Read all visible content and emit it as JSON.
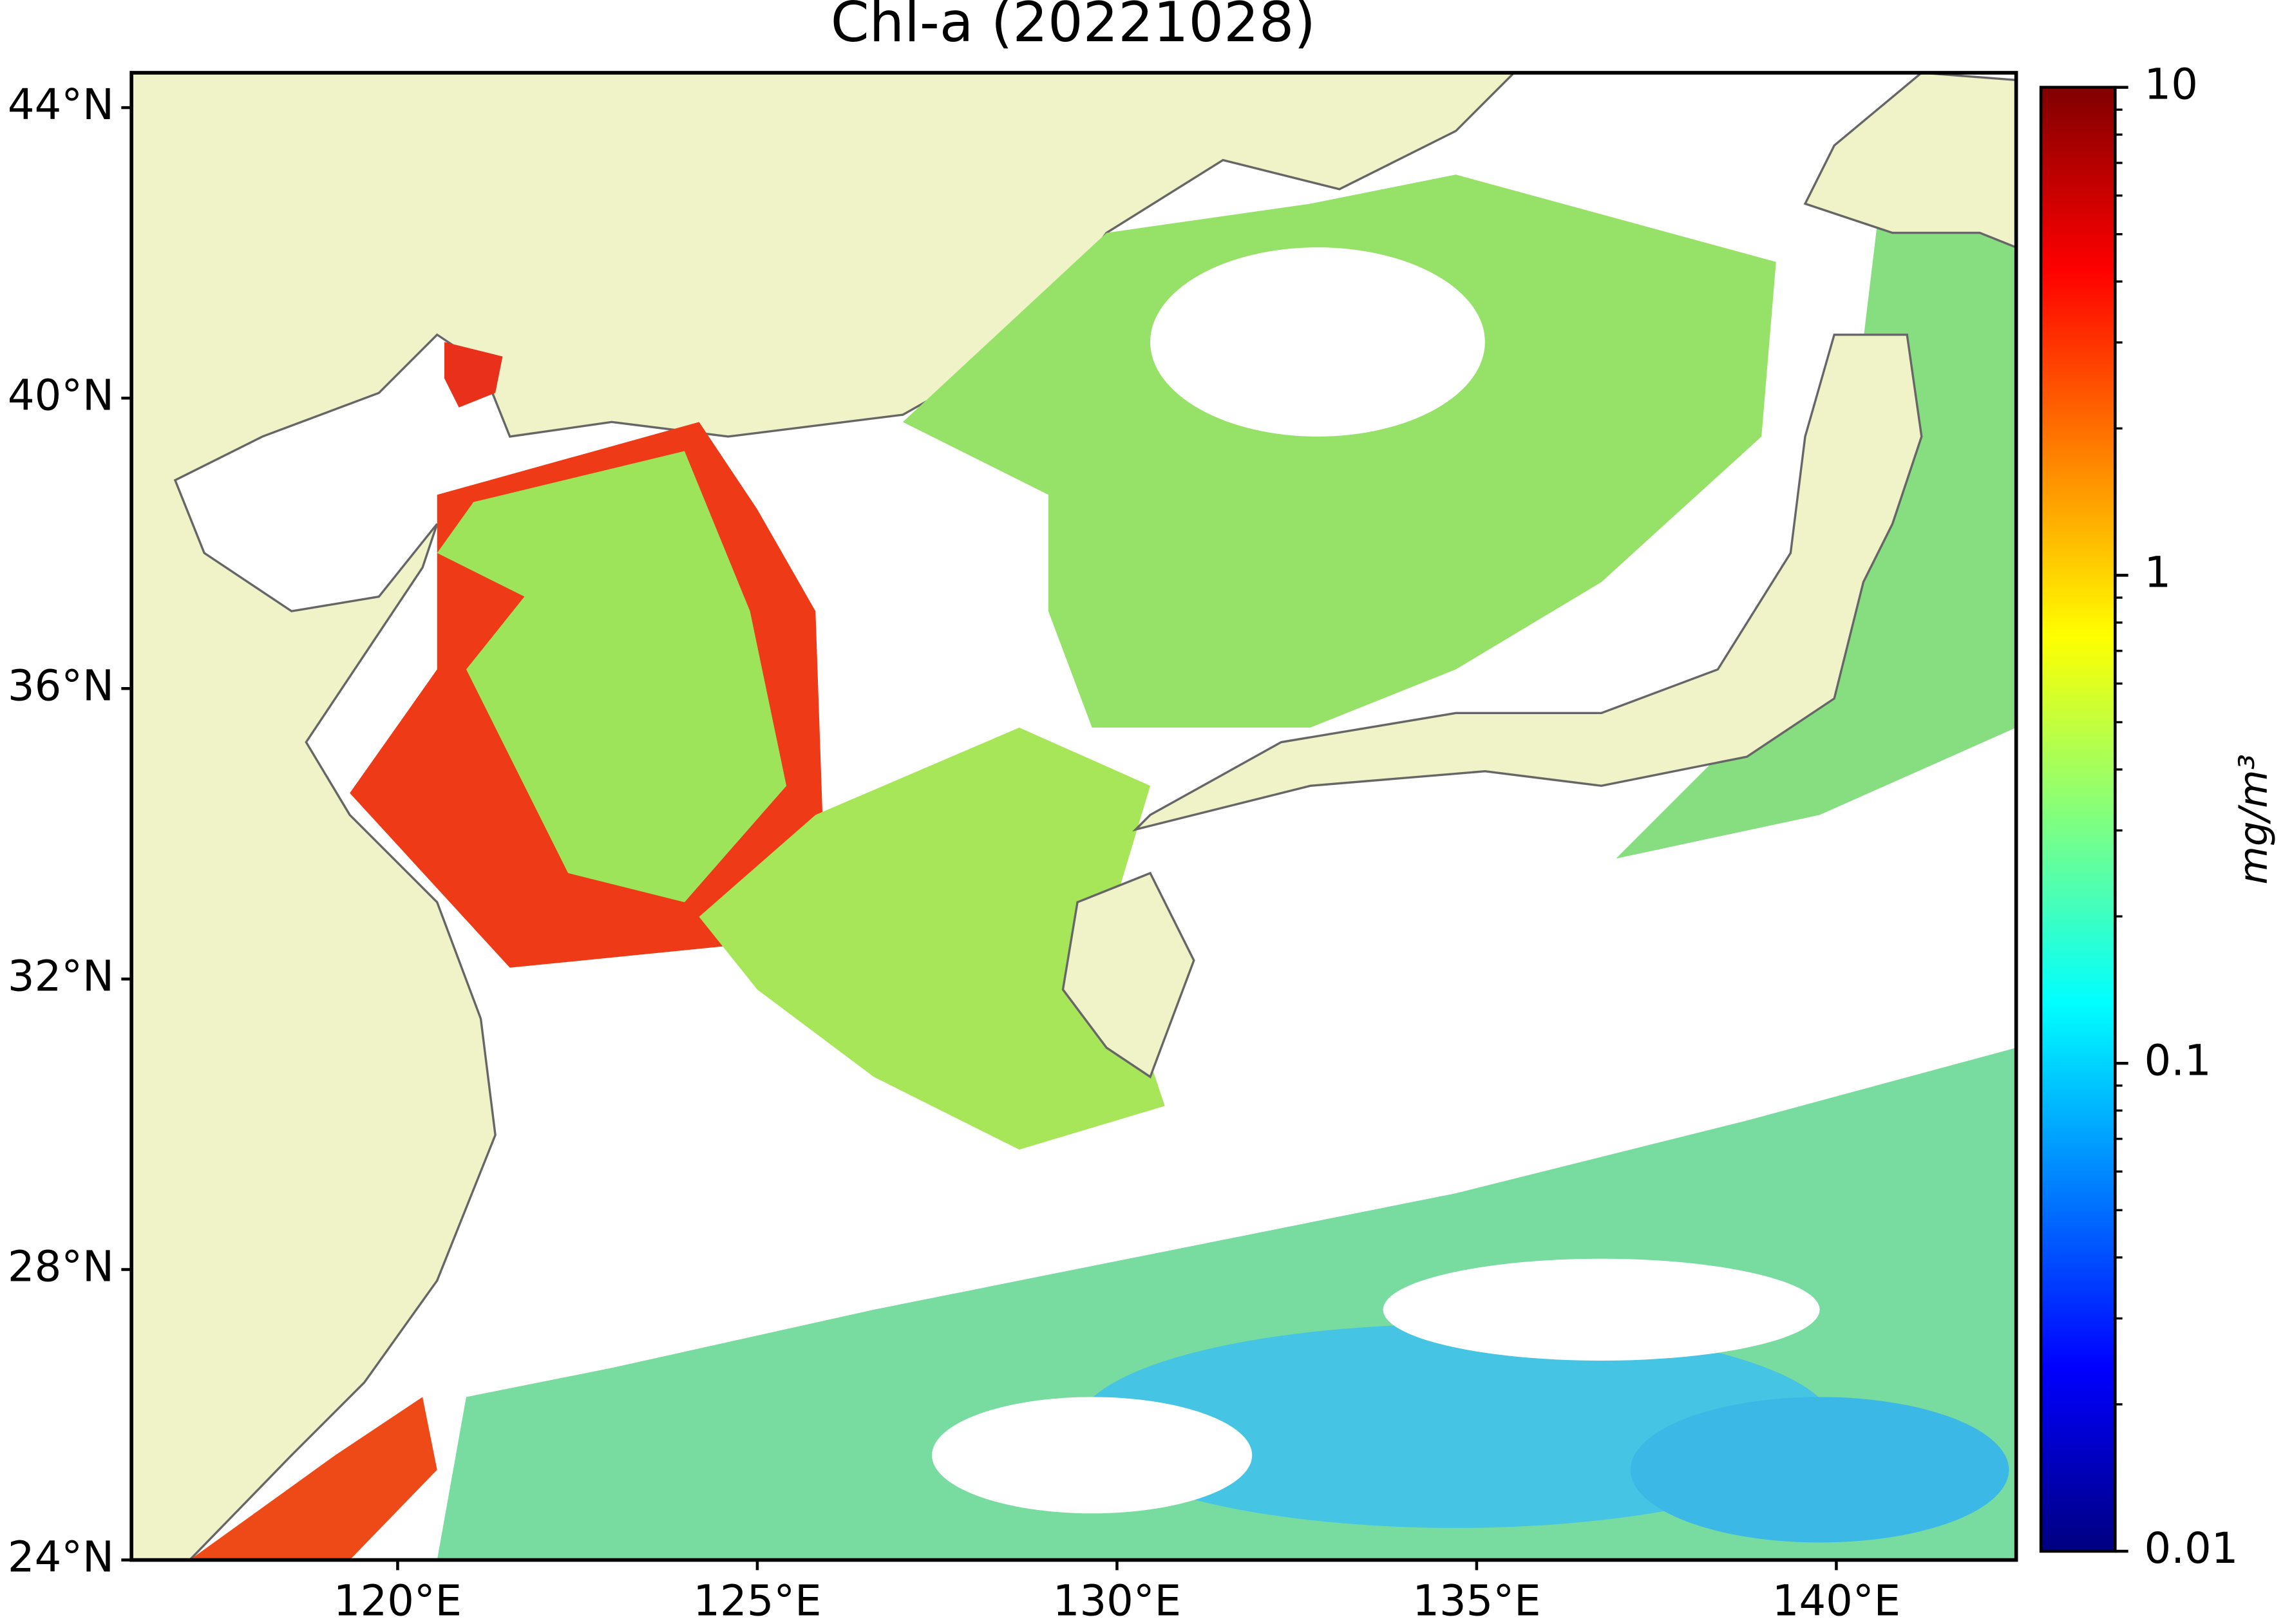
{
  "chart_data": {
    "type": "map",
    "title": "Chl-a (20221028)",
    "xlim": [
      116.3,
      142.5
    ],
    "ylim": [
      24,
      44.48
    ],
    "xticks": [
      {
        "value": 120,
        "label": "120°E"
      },
      {
        "value": 125,
        "label": "125°E"
      },
      {
        "value": 130,
        "label": "130°E"
      },
      {
        "value": 135,
        "label": "135°E"
      },
      {
        "value": 140,
        "label": "140°E"
      }
    ],
    "yticks": [
      {
        "value": 24,
        "label": "24°N"
      },
      {
        "value": 28,
        "label": "28°N"
      },
      {
        "value": 32,
        "label": "32°N"
      },
      {
        "value": 36,
        "label": "36°N"
      },
      {
        "value": 40,
        "label": "40°N"
      },
      {
        "value": 44,
        "label": "44°N"
      }
    ],
    "colorbar": {
      "lim": [
        0.01,
        10
      ],
      "ticks": [
        0.01,
        0.1,
        1,
        10
      ],
      "scale": "log",
      "colormap": "jet",
      "label": "mg/m³"
    }
  }
}
